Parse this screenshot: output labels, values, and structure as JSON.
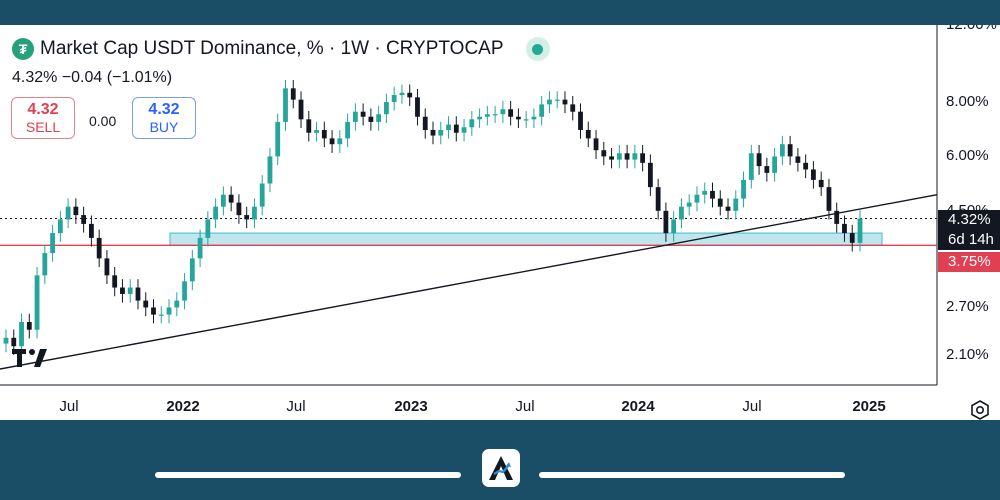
{
  "header": {
    "title": "Market Cap USDT Dominance, % · 1W · CRYPTOCAP",
    "change": "4.32%  −0.04 (−1.01%)",
    "sell_price": "4.32",
    "sell_label": "SELL",
    "spread": "0.00",
    "buy_price": "4.32",
    "buy_label": "BUY"
  },
  "price_axis": {
    "ticks": [
      "12.00%",
      "8.00%",
      "6.00%",
      "4.50%",
      "2.70%",
      "2.10%"
    ],
    "current_price_tag": "4.32%",
    "countdown_tag": "6d 14h",
    "support_tag": "3.75%"
  },
  "time_axis": {
    "labels": [
      "Jul",
      "2022",
      "Jul",
      "2023",
      "Jul",
      "2024",
      "Jul",
      "2025"
    ]
  },
  "colors": {
    "up": "#26a69a",
    "down": "#131722",
    "support_line": "#e04052",
    "zone_fill": "#bfe6ec",
    "zone_border": "#5cc4d0",
    "trendline": "#131722"
  },
  "chart_data": {
    "type": "candlestick",
    "title": "Market Cap USDT Dominance, % · 1W · CRYPTOCAP",
    "interval": "1W",
    "y_scale": "log",
    "ylim": [
      1.85,
      12.0
    ],
    "x_range": [
      "2021-05",
      "2025-02"
    ],
    "ytick_values": [
      12.0,
      8.0,
      6.0,
      4.5,
      2.7,
      2.1
    ],
    "xtick_labels": [
      "Jul",
      "2022",
      "Jul",
      "2023",
      "Jul",
      "2024",
      "Jul",
      "2025"
    ],
    "last_value": 4.32,
    "change": -0.04,
    "change_percent": -1.01,
    "support_line_value": 3.75,
    "support_zone": {
      "low": 3.75,
      "high": 4.0,
      "start": "2022-01",
      "end": "2025-02"
    },
    "trendline": {
      "start": {
        "date": "2021-05",
        "value": 1.95
      },
      "end": {
        "date": "2025-02",
        "value": 4.9
      }
    },
    "series_weekly_close": [
      2.3,
      2.2,
      2.5,
      2.4,
      3.2,
      3.6,
      4.0,
      4.3,
      4.6,
      4.4,
      4.2,
      3.9,
      3.5,
      3.2,
      3.0,
      2.9,
      3.0,
      2.8,
      2.7,
      2.6,
      2.6,
      2.7,
      2.8,
      3.1,
      3.5,
      3.9,
      4.3,
      4.6,
      4.9,
      4.7,
      4.4,
      4.3,
      4.6,
      5.2,
      6.0,
      7.2,
      8.6,
      8.1,
      7.3,
      6.8,
      6.9,
      6.6,
      6.4,
      6.6,
      7.2,
      7.6,
      7.4,
      7.2,
      7.5,
      8.0,
      8.3,
      8.4,
      8.2,
      7.4,
      6.9,
      6.7,
      6.9,
      7.1,
      6.8,
      7.0,
      7.3,
      7.4,
      7.5,
      7.5,
      7.7,
      7.4,
      7.3,
      7.3,
      7.4,
      7.9,
      8.1,
      8.1,
      7.9,
      7.6,
      6.9,
      6.6,
      6.2,
      6.0,
      5.9,
      6.1,
      5.9,
      6.1,
      5.8,
      5.1,
      4.5,
      4.0,
      4.3,
      4.6,
      4.7,
      4.9,
      5.0,
      4.8,
      4.6,
      4.5,
      4.8,
      5.3,
      6.1,
      5.7,
      5.5,
      6.0,
      6.4,
      6.0,
      5.8,
      5.6,
      5.3,
      5.1,
      4.5,
      4.2,
      4.0,
      3.8,
      4.32
    ]
  },
  "branding": {
    "badge_letter": "A"
  }
}
